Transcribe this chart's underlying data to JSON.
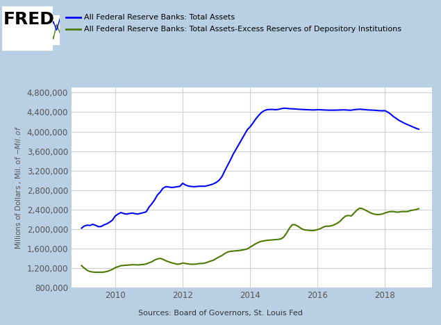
{
  "background_color": "#b8cfe4",
  "plot_bg_color": "#ffffff",
  "legend_line1": "All Federal Reserve Banks: Total Assets",
  "legend_line2": "All Federal Reserve Banks: Total Assets-Excess Reserves of Depository Institutions",
  "ylabel": "Millions of Dollars , Mil. of $-Mil. of $",
  "source_text": "Sources: Board of Governors, St. Louis Fed",
  "ylim": [
    800000,
    4900000
  ],
  "yticks": [
    800000,
    1200000,
    1600000,
    2000000,
    2400000,
    2800000,
    3200000,
    3600000,
    4000000,
    4400000,
    4800000
  ],
  "xlim_start": 2008.7,
  "xlim_end": 2019.4,
  "blue_color": "#0000ff",
  "green_color": "#4a7a00",
  "line_width": 1.5,
  "blue_data_x": [
    2009.0,
    2009.083,
    2009.167,
    2009.25,
    2009.333,
    2009.417,
    2009.5,
    2009.583,
    2009.667,
    2009.75,
    2009.833,
    2009.917,
    2010.0,
    2010.083,
    2010.167,
    2010.25,
    2010.333,
    2010.417,
    2010.5,
    2010.583,
    2010.667,
    2010.75,
    2010.833,
    2010.917,
    2011.0,
    2011.083,
    2011.167,
    2011.25,
    2011.333,
    2011.417,
    2011.5,
    2011.583,
    2011.667,
    2011.75,
    2011.833,
    2011.917,
    2012.0,
    2012.083,
    2012.167,
    2012.25,
    2012.333,
    2012.417,
    2012.5,
    2012.583,
    2012.667,
    2012.75,
    2012.833,
    2012.917,
    2013.0,
    2013.083,
    2013.167,
    2013.25,
    2013.333,
    2013.417,
    2013.5,
    2013.583,
    2013.667,
    2013.75,
    2013.833,
    2013.917,
    2014.0,
    2014.083,
    2014.167,
    2014.25,
    2014.333,
    2014.417,
    2014.5,
    2014.583,
    2014.667,
    2014.75,
    2014.833,
    2014.917,
    2015.0,
    2015.083,
    2015.167,
    2015.25,
    2015.333,
    2015.417,
    2015.5,
    2015.583,
    2015.667,
    2015.75,
    2015.833,
    2015.917,
    2016.0,
    2016.083,
    2016.167,
    2016.25,
    2016.333,
    2016.417,
    2016.5,
    2016.583,
    2016.667,
    2016.75,
    2016.833,
    2016.917,
    2017.0,
    2017.083,
    2017.167,
    2017.25,
    2017.333,
    2017.417,
    2017.5,
    2017.583,
    2017.667,
    2017.75,
    2017.833,
    2017.917,
    2018.0,
    2018.083,
    2018.167,
    2018.25,
    2018.333,
    2018.417,
    2018.5,
    2018.583,
    2018.667,
    2018.75,
    2018.833,
    2018.917,
    2019.0
  ],
  "blue_data_y": [
    2020000,
    2064000,
    2081000,
    2075000,
    2099000,
    2078000,
    2050000,
    2054000,
    2088000,
    2109000,
    2143000,
    2185000,
    2270000,
    2310000,
    2340000,
    2320000,
    2308000,
    2320000,
    2330000,
    2318000,
    2309000,
    2324000,
    2338000,
    2355000,
    2450000,
    2520000,
    2600000,
    2700000,
    2760000,
    2840000,
    2870000,
    2865000,
    2855000,
    2860000,
    2870000,
    2878000,
    2940000,
    2905000,
    2885000,
    2875000,
    2870000,
    2875000,
    2880000,
    2880000,
    2880000,
    2895000,
    2910000,
    2930000,
    2960000,
    3005000,
    3080000,
    3200000,
    3310000,
    3420000,
    3540000,
    3640000,
    3740000,
    3840000,
    3940000,
    4040000,
    4100000,
    4175000,
    4260000,
    4330000,
    4390000,
    4430000,
    4450000,
    4455000,
    4455000,
    4450000,
    4455000,
    4470000,
    4480000,
    4478000,
    4470000,
    4468000,
    4465000,
    4460000,
    4456000,
    4453000,
    4450000,
    4448000,
    4445000,
    4445000,
    4450000,
    4448000,
    4445000,
    4443000,
    4440000,
    4440000,
    4440000,
    4442000,
    4444000,
    4446000,
    4445000,
    4440000,
    4440000,
    4450000,
    4455000,
    4460000,
    4455000,
    4450000,
    4445000,
    4442000,
    4440000,
    4435000,
    4430000,
    4428000,
    4430000,
    4400000,
    4360000,
    4310000,
    4270000,
    4230000,
    4200000,
    4170000,
    4145000,
    4120000,
    4095000,
    4070000,
    4050000
  ],
  "green_data_x": [
    2009.0,
    2009.083,
    2009.167,
    2009.25,
    2009.333,
    2009.417,
    2009.5,
    2009.583,
    2009.667,
    2009.75,
    2009.833,
    2009.917,
    2010.0,
    2010.083,
    2010.167,
    2010.25,
    2010.333,
    2010.417,
    2010.5,
    2010.583,
    2010.667,
    2010.75,
    2010.833,
    2010.917,
    2011.0,
    2011.083,
    2011.167,
    2011.25,
    2011.333,
    2011.417,
    2011.5,
    2011.583,
    2011.667,
    2011.75,
    2011.833,
    2011.917,
    2012.0,
    2012.083,
    2012.167,
    2012.25,
    2012.333,
    2012.417,
    2012.5,
    2012.583,
    2012.667,
    2012.75,
    2012.833,
    2012.917,
    2013.0,
    2013.083,
    2013.167,
    2013.25,
    2013.333,
    2013.417,
    2013.5,
    2013.583,
    2013.667,
    2013.75,
    2013.833,
    2013.917,
    2014.0,
    2014.083,
    2014.167,
    2014.25,
    2014.333,
    2014.417,
    2014.5,
    2014.583,
    2014.667,
    2014.75,
    2014.833,
    2014.917,
    2015.0,
    2015.083,
    2015.167,
    2015.25,
    2015.333,
    2015.417,
    2015.5,
    2015.583,
    2015.667,
    2015.75,
    2015.833,
    2015.917,
    2016.0,
    2016.083,
    2016.167,
    2016.25,
    2016.333,
    2016.417,
    2016.5,
    2016.583,
    2016.667,
    2016.75,
    2016.833,
    2016.917,
    2017.0,
    2017.083,
    2017.167,
    2017.25,
    2017.333,
    2017.417,
    2017.5,
    2017.583,
    2017.667,
    2017.75,
    2017.833,
    2017.917,
    2018.0,
    2018.083,
    2018.167,
    2018.25,
    2018.333,
    2018.417,
    2018.5,
    2018.583,
    2018.667,
    2018.75,
    2018.833,
    2018.917,
    2019.0
  ],
  "green_data_y": [
    1250000,
    1200000,
    1155000,
    1130000,
    1120000,
    1115000,
    1115000,
    1115000,
    1120000,
    1130000,
    1150000,
    1175000,
    1210000,
    1230000,
    1250000,
    1255000,
    1260000,
    1265000,
    1270000,
    1270000,
    1265000,
    1270000,
    1275000,
    1285000,
    1310000,
    1330000,
    1365000,
    1390000,
    1400000,
    1380000,
    1350000,
    1330000,
    1310000,
    1295000,
    1280000,
    1285000,
    1305000,
    1295000,
    1285000,
    1280000,
    1280000,
    1285000,
    1295000,
    1295000,
    1305000,
    1325000,
    1345000,
    1365000,
    1400000,
    1430000,
    1460000,
    1500000,
    1530000,
    1545000,
    1550000,
    1555000,
    1560000,
    1570000,
    1580000,
    1595000,
    1630000,
    1665000,
    1700000,
    1730000,
    1750000,
    1760000,
    1770000,
    1775000,
    1780000,
    1785000,
    1790000,
    1800000,
    1840000,
    1920000,
    2020000,
    2090000,
    2090000,
    2060000,
    2020000,
    1990000,
    1980000,
    1975000,
    1970000,
    1975000,
    1990000,
    2010000,
    2040000,
    2060000,
    2060000,
    2070000,
    2090000,
    2120000,
    2160000,
    2220000,
    2270000,
    2280000,
    2270000,
    2330000,
    2390000,
    2430000,
    2420000,
    2390000,
    2360000,
    2330000,
    2310000,
    2300000,
    2300000,
    2310000,
    2330000,
    2350000,
    2360000,
    2360000,
    2350000,
    2350000,
    2360000,
    2360000,
    2360000,
    2380000,
    2390000,
    2400000,
    2420000
  ]
}
